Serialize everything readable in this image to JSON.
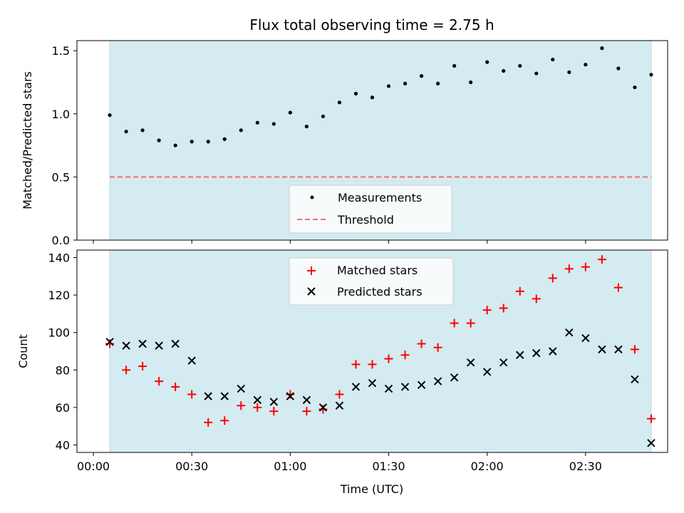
{
  "figure": {
    "title": "Flux total observing time = 2.75 h",
    "xlabel": "Time (UTC)",
    "x_tick_labels": [
      "00:00",
      "00:30",
      "01:00",
      "01:30",
      "02:00",
      "02:30"
    ],
    "colors": {
      "shade": "#d4ebf1",
      "measurement": "#000000",
      "threshold": "#f07070",
      "matched": "#ff0000",
      "predicted": "#000000"
    }
  },
  "chart_data": [
    {
      "type": "scatter",
      "panel": "top",
      "ylabel": "Matched/Predicted stars",
      "x_range_minutes": [
        -5,
        175
      ],
      "ylim": [
        0,
        1.58
      ],
      "y_ticks": [
        0.0,
        0.5,
        1.0,
        1.5
      ],
      "y_tick_labels": [
        "0.0",
        "0.5",
        "1.0",
        "1.5"
      ],
      "shaded_span_minutes": [
        5,
        170
      ],
      "threshold": 0.5,
      "legend_placement": "lower center",
      "legend": {
        "measurements": "Measurements",
        "threshold": "Threshold"
      },
      "x_minutes": [
        5,
        10,
        15,
        20,
        25,
        30,
        35,
        40,
        45,
        50,
        55,
        60,
        65,
        70,
        75,
        80,
        85,
        90,
        95,
        100,
        105,
        110,
        115,
        120,
        125,
        130,
        135,
        140,
        145,
        150,
        155,
        160,
        165,
        170
      ],
      "values": [
        0.99,
        0.86,
        0.87,
        0.79,
        0.75,
        0.78,
        0.78,
        0.8,
        0.87,
        0.93,
        0.92,
        1.01,
        0.9,
        0.98,
        1.09,
        1.16,
        1.13,
        1.22,
        1.24,
        1.3,
        1.24,
        1.38,
        1.25,
        1.41,
        1.34,
        1.38,
        1.32,
        1.43,
        1.33,
        1.39,
        1.52,
        1.36,
        1.21,
        1.31
      ]
    },
    {
      "type": "scatter",
      "panel": "bottom",
      "ylabel": "Count",
      "x_range_minutes": [
        -5,
        175
      ],
      "ylim": [
        36,
        144
      ],
      "y_ticks": [
        40,
        60,
        80,
        100,
        120,
        140
      ],
      "y_tick_labels": [
        "40",
        "60",
        "80",
        "100",
        "120",
        "140"
      ],
      "shaded_span_minutes": [
        5,
        170
      ],
      "legend_placement": "upper center",
      "x_minutes": [
        5,
        10,
        15,
        20,
        25,
        30,
        35,
        40,
        45,
        50,
        55,
        60,
        65,
        70,
        75,
        80,
        85,
        90,
        95,
        100,
        105,
        110,
        115,
        120,
        125,
        130,
        135,
        140,
        145,
        150,
        155,
        160,
        165,
        170
      ],
      "series": [
        {
          "name": "Matched stars",
          "values": [
            94,
            80,
            82,
            74,
            71,
            67,
            52,
            53,
            61,
            60,
            58,
            67,
            58,
            59,
            67,
            83,
            83,
            86,
            88,
            94,
            92,
            105,
            105,
            112,
            113,
            122,
            118,
            129,
            134,
            135,
            139,
            124,
            91,
            54
          ]
        },
        {
          "name": "Predicted stars",
          "values": [
            95,
            93,
            94,
            93,
            94,
            85,
            66,
            66,
            70,
            64,
            63,
            66,
            64,
            60,
            61,
            71,
            73,
            70,
            71,
            72,
            74,
            76,
            84,
            79,
            84,
            88,
            89,
            90,
            100,
            97,
            91,
            91,
            75,
            41
          ]
        }
      ]
    }
  ]
}
